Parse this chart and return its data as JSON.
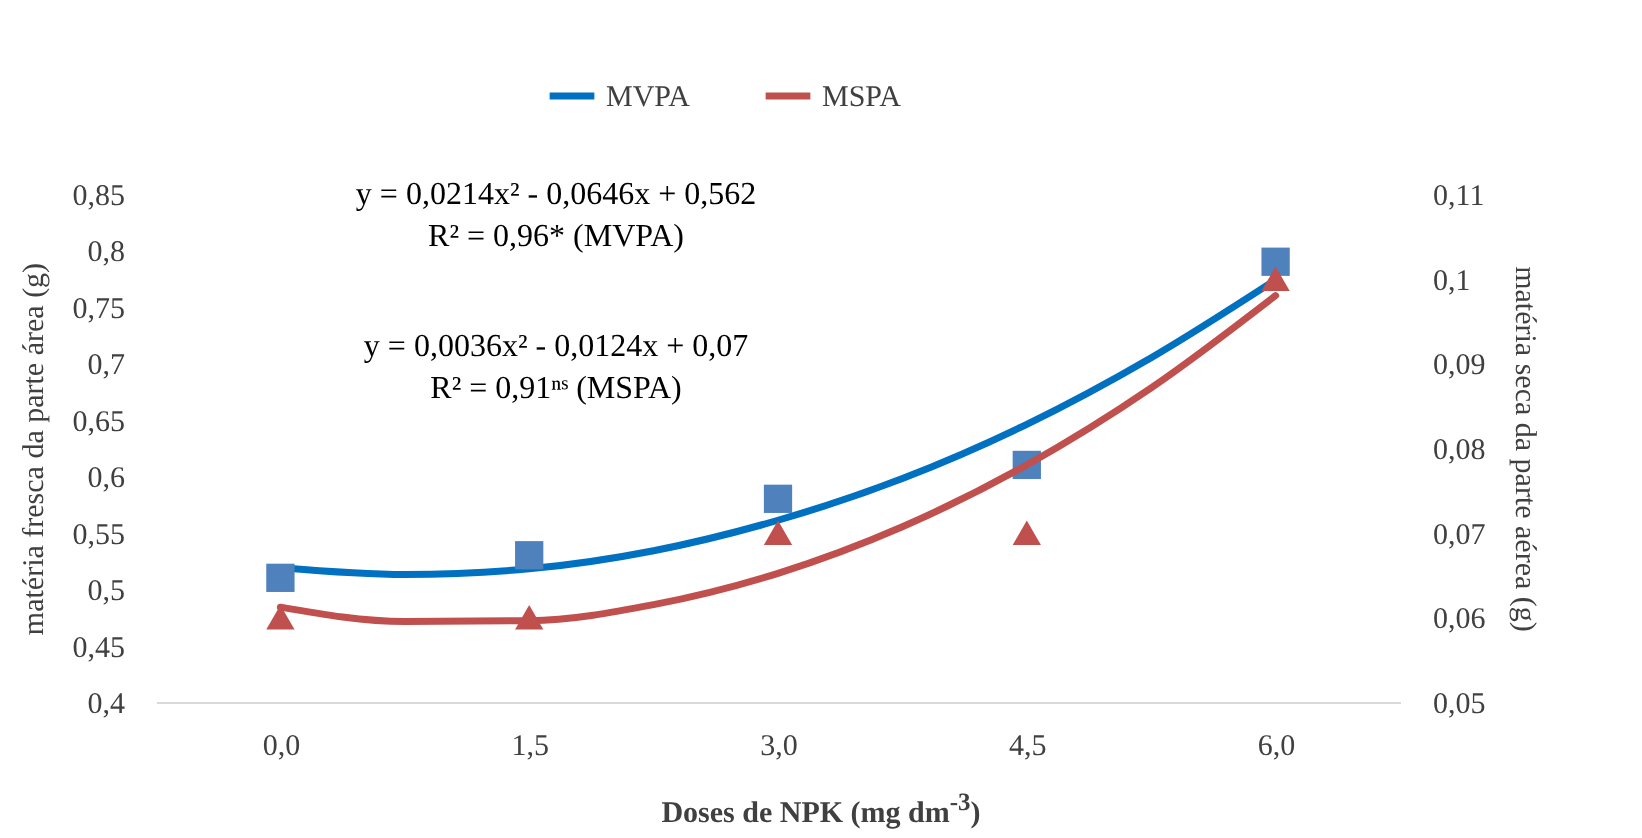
{
  "chart_data": {
    "type": "scatter",
    "xlabel": "Doses de NPK (mg dm$^{-3}$)",
    "ylabel": "matéria fresca da parte área (g)",
    "y2label": "matéria seca da parte aérea (g)",
    "annotations": [
      "y = 0,0214x² - 0,0646x + 0,562",
      "R² = 0,96* (MVPA)",
      "y = 0,0036x² - 0,0124x + 0,07",
      "R² = 0,91ⁿˢ (MSPA)"
    ],
    "xlim": [
      -0.75,
      6.75
    ],
    "xticks": [
      {
        "value": 0,
        "label": "0,0"
      },
      {
        "value": 1.5,
        "label": "1,5"
      },
      {
        "value": 3,
        "label": "3,0"
      },
      {
        "value": 4.5,
        "label": "4,5"
      },
      {
        "value": 6,
        "label": "6,0"
      }
    ],
    "ylim": [
      0.4,
      0.85
    ],
    "yticks": [
      {
        "value": 0.4,
        "label": "0,4"
      },
      {
        "value": 0.45,
        "label": "0,45"
      },
      {
        "value": 0.5,
        "label": "0,5"
      },
      {
        "value": 0.55,
        "label": "0,55"
      },
      {
        "value": 0.6,
        "label": "0,6"
      },
      {
        "value": 0.65,
        "label": "0,65"
      },
      {
        "value": 0.7,
        "label": "0,7"
      },
      {
        "value": 0.75,
        "label": "0,75"
      },
      {
        "value": 0.8,
        "label": "0,8"
      },
      {
        "value": 0.85,
        "label": "0,85"
      }
    ],
    "y2lim": [
      0.05,
      0.11
    ],
    "y2ticks": [
      {
        "value": 0.05,
        "label": "0,05"
      },
      {
        "value": 0.06,
        "label": "0,06"
      },
      {
        "value": 0.07,
        "label": "0,07"
      },
      {
        "value": 0.08,
        "label": "0,08"
      },
      {
        "value": 0.09,
        "label": "0,09"
      },
      {
        "value": 0.1,
        "label": "0,1"
      },
      {
        "value": 0.11,
        "label": "0,11"
      }
    ],
    "legend": "top",
    "series": [
      {
        "name": "MVPA",
        "type": "line",
        "color": "#0070c0",
        "x": [
          0,
          0.75,
          1.5,
          2.25,
          3,
          3.75,
          4.5,
          5.25,
          6
        ],
        "values": [
          0.519,
          0.513,
          0.518,
          0.534,
          0.561,
          0.598,
          0.646,
          0.705,
          0.774
        ]
      },
      {
        "type": "scatter",
        "marker": "square",
        "color": "#4f81bd",
        "x": [
          0,
          1.5,
          3,
          4.5,
          6
        ],
        "values": [
          0.51,
          0.53,
          0.58,
          0.61,
          0.79
        ]
      },
      {
        "name": "MSPA",
        "type": "line",
        "axis": "y2",
        "color": "#c0504d",
        "x": [
          0,
          0.75,
          1.5,
          2.25,
          3,
          3.75,
          4.5,
          5.25,
          6
        ],
        "values": [
          0.0612,
          0.0595,
          0.0596,
          0.0615,
          0.0652,
          0.0707,
          0.078,
          0.0871,
          0.098
        ]
      },
      {
        "type": "scatter",
        "marker": "triangle",
        "axis": "y2",
        "color": "#c0504d",
        "x": [
          0,
          1.5,
          3,
          4.5,
          6
        ],
        "values": [
          0.06,
          0.06,
          0.07,
          0.07,
          0.1
        ]
      }
    ]
  }
}
